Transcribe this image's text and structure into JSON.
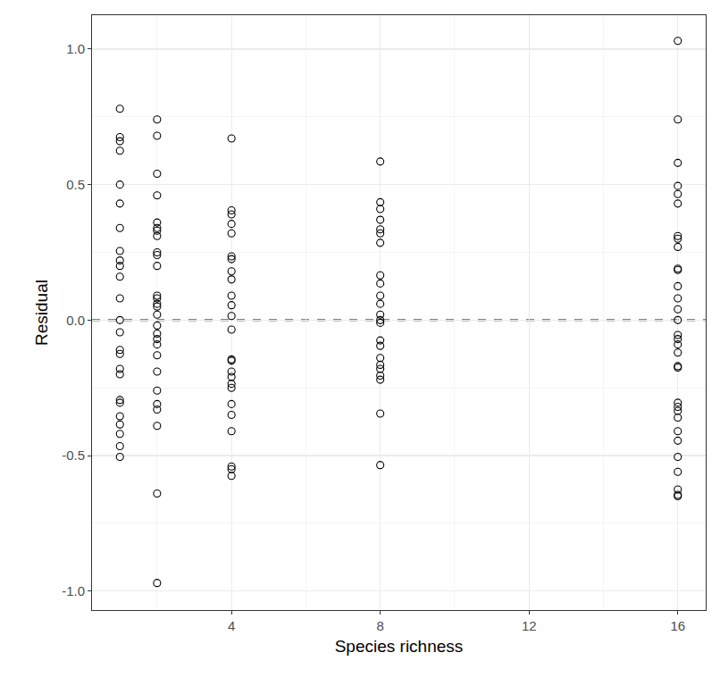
{
  "chart_data": {
    "type": "scatter",
    "x_label": "Species richness",
    "y_label": "Residual",
    "marker": "open_circle",
    "color": "#000000",
    "grid": true,
    "xlim": [
      0.25,
      16.75
    ],
    "xticks": [
      4,
      8,
      12,
      16
    ],
    "ylim": [
      -1.07,
      1.125
    ],
    "yticks": [
      {
        "value": -1.0,
        "label": "-1.0"
      },
      {
        "value": -0.5,
        "label": "-0.5"
      },
      {
        "value": 0,
        "label": "0.0"
      },
      {
        "value": 0.5,
        "label": "0.5"
      },
      {
        "value": 1.0,
        "label": "1.0"
      }
    ],
    "reference_line": {
      "value": 0,
      "line_style": "dashed"
    },
    "x": [
      1,
      1,
      1,
      1,
      1,
      1,
      1,
      1,
      1,
      1,
      1,
      1,
      1,
      1,
      1,
      1,
      1,
      1,
      1,
      1,
      1,
      1,
      1,
      1,
      1,
      2,
      2,
      2,
      2,
      2,
      2,
      2,
      2,
      2,
      2,
      2,
      2,
      2,
      2,
      2,
      2,
      2,
      2,
      2,
      2,
      2,
      2,
      2,
      2,
      2,
      2,
      2,
      2,
      4,
      4,
      4,
      4,
      4,
      4,
      4,
      4,
      4,
      4,
      4,
      4,
      4,
      4,
      4,
      4,
      4,
      4,
      4,
      4,
      4,
      4,
      4,
      4,
      4,
      8,
      8,
      8,
      8,
      8,
      8,
      8,
      8,
      8,
      8,
      8,
      8,
      8,
      8,
      8,
      8,
      8,
      8,
      8,
      8,
      8,
      8,
      8,
      16,
      16,
      16,
      16,
      16,
      16,
      16,
      16,
      16,
      16,
      16,
      16,
      16,
      16,
      16,
      16,
      16,
      16,
      16,
      16,
      16,
      16,
      16,
      16,
      16,
      16,
      16,
      16,
      16,
      16,
      16,
      16
    ],
    "values": [
      0.78,
      0.675,
      0.66,
      0.625,
      0.5,
      0.43,
      0.34,
      0.255,
      0.22,
      0.2,
      0.16,
      0.08,
      0.0,
      -0.045,
      -0.11,
      -0.125,
      -0.18,
      -0.2,
      -0.295,
      -0.305,
      -0.355,
      -0.385,
      -0.42,
      -0.465,
      -0.505,
      0.74,
      0.68,
      0.54,
      0.46,
      0.36,
      0.34,
      0.33,
      0.31,
      0.25,
      0.24,
      0.2,
      0.09,
      0.08,
      0.06,
      0.05,
      0.02,
      -0.02,
      -0.05,
      -0.07,
      -0.09,
      -0.13,
      -0.19,
      -0.26,
      -0.31,
      -0.33,
      -0.39,
      -0.64,
      -0.97,
      0.67,
      0.405,
      0.39,
      0.355,
      0.32,
      0.235,
      0.225,
      0.18,
      0.15,
      0.09,
      0.055,
      0.015,
      -0.035,
      -0.145,
      -0.15,
      -0.19,
      -0.21,
      -0.235,
      -0.25,
      -0.31,
      -0.35,
      -0.41,
      -0.54,
      -0.55,
      -0.575,
      0.585,
      0.435,
      0.41,
      0.37,
      0.335,
      0.32,
      0.285,
      0.165,
      0.135,
      0.09,
      0.06,
      0.02,
      0.0,
      -0.01,
      -0.075,
      -0.095,
      -0.14,
      -0.165,
      -0.18,
      -0.205,
      -0.22,
      -0.345,
      -0.535,
      1.03,
      0.74,
      0.58,
      0.495,
      0.465,
      0.43,
      0.31,
      0.3,
      0.27,
      0.19,
      0.185,
      0.125,
      0.08,
      0.04,
      0.0,
      -0.055,
      -0.07,
      -0.09,
      -0.12,
      -0.17,
      -0.175,
      -0.305,
      -0.32,
      -0.335,
      -0.36,
      -0.41,
      -0.445,
      -0.505,
      -0.56,
      -0.625,
      -0.645,
      -0.65
    ]
  }
}
